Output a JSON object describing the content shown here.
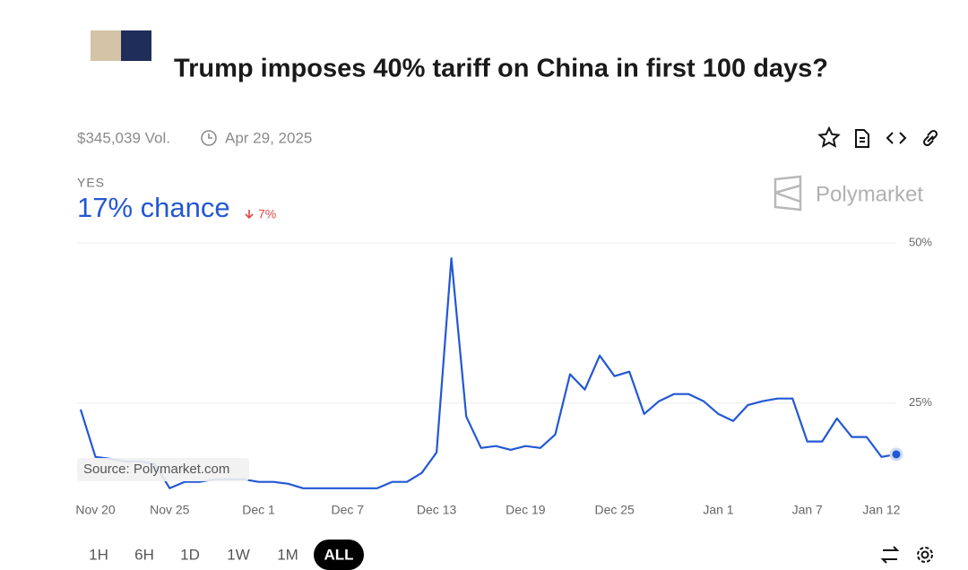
{
  "header": {
    "title": "Trump imposes 40% tariff on China in first 100 days?",
    "volume": "$345,039 Vol.",
    "date": "Apr 29, 2025"
  },
  "outcome": {
    "label": "YES",
    "chance": "17% chance",
    "change": "7%",
    "brand": "Polymarket",
    "source": "Source: Polymarket.com"
  },
  "ranges": [
    "1H",
    "6H",
    "1D",
    "1W",
    "1M",
    "ALL"
  ],
  "chart_data": {
    "type": "line",
    "color": "#2358d4",
    "categories": [
      null,
      "Nov 20",
      null,
      null,
      null,
      null,
      "Nov 25",
      null,
      null,
      null,
      null,
      null,
      "Dec 1",
      null,
      null,
      null,
      null,
      null,
      "Dec 7",
      null,
      null,
      null,
      null,
      null,
      "Dec 13",
      null,
      null,
      null,
      null,
      null,
      "Dec 19",
      null,
      null,
      null,
      null,
      null,
      "Dec 25",
      null,
      null,
      null,
      null,
      null,
      null,
      "Jan 1",
      null,
      null,
      null,
      null,
      null,
      "Jan 7",
      null,
      null,
      null,
      null,
      "Jan 12",
      null
    ],
    "values": [
      24.0,
      16.6,
      16.3,
      15.9,
      15.9,
      15.5,
      11.7,
      12.7,
      12.7,
      13.1,
      13.1,
      13.1,
      12.7,
      12.7,
      12.4,
      11.7,
      11.7,
      11.7,
      11.7,
      11.7,
      11.7,
      12.7,
      12.7,
      14.1,
      17.3,
      47.6,
      22.9,
      18.0,
      18.3,
      17.7,
      18.3,
      18.0,
      20.1,
      29.5,
      27.1,
      32.4,
      29.2,
      29.9,
      23.3,
      25.3,
      26.4,
      26.4,
      25.3,
      23.3,
      22.2,
      24.7,
      25.3,
      25.7,
      25.7,
      19.0,
      19.0,
      22.6,
      19.7,
      19.7,
      16.6,
      17
    ],
    "ylim": [
      10,
      50
    ],
    "yticks": [
      {
        "value": 25,
        "label": "25%"
      },
      {
        "value": 50,
        "label": "50%"
      }
    ],
    "grid": true
  }
}
